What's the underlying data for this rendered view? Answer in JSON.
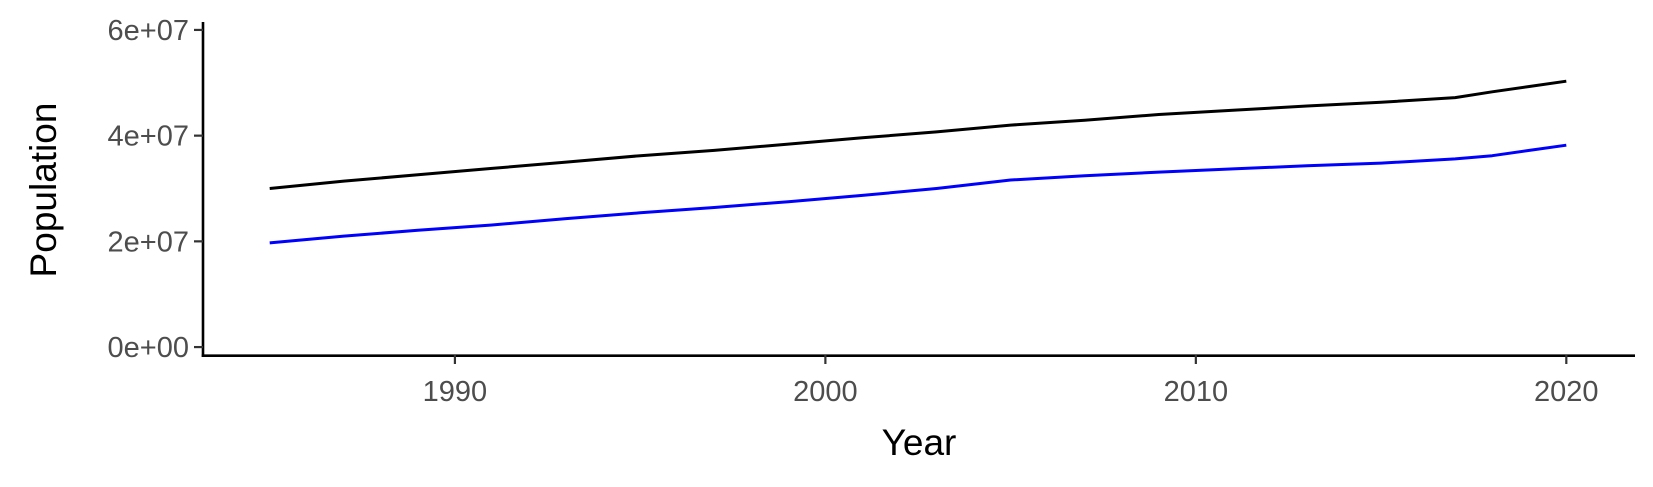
{
  "chart_data": {
    "type": "line",
    "title": "",
    "xlabel": "Year",
    "ylabel": "Population",
    "xlim": [
      1983.2,
      2021.8
    ],
    "ylim": [
      -1500000,
      61500000
    ],
    "x_ticks": [
      1990,
      2000,
      2010,
      2020
    ],
    "x_tick_labels": [
      "1990",
      "2000",
      "2010",
      "2020"
    ],
    "y_ticks": [
      0,
      20000000,
      40000000,
      60000000
    ],
    "y_tick_labels": [
      "0e+00",
      "2e+07",
      "4e+07",
      "6e+07"
    ],
    "grid": false,
    "legend": "none",
    "x": [
      1985,
      1987,
      1989,
      1991,
      1993,
      1995,
      1997,
      1999,
      2001,
      2003,
      2005,
      2007,
      2009,
      2011,
      2013,
      2015,
      2017,
      2018,
      2019,
      2020
    ],
    "series": [
      {
        "color": "#000000",
        "values": [
          30000000,
          31400000,
          32600000,
          33800000,
          35000000,
          36200000,
          37200000,
          38400000,
          39600000,
          40700000,
          42000000,
          42900000,
          44000000,
          44800000,
          45600000,
          46300000,
          47200000,
          48300000,
          49300000,
          50300000
        ]
      },
      {
        "color": "#0000ff",
        "values": [
          19700000,
          21000000,
          22100000,
          23100000,
          24300000,
          25400000,
          26400000,
          27500000,
          28700000,
          30000000,
          31600000,
          32400000,
          33100000,
          33700000,
          34300000,
          34800000,
          35600000,
          36200000,
          37200000,
          38200000
        ]
      }
    ]
  }
}
